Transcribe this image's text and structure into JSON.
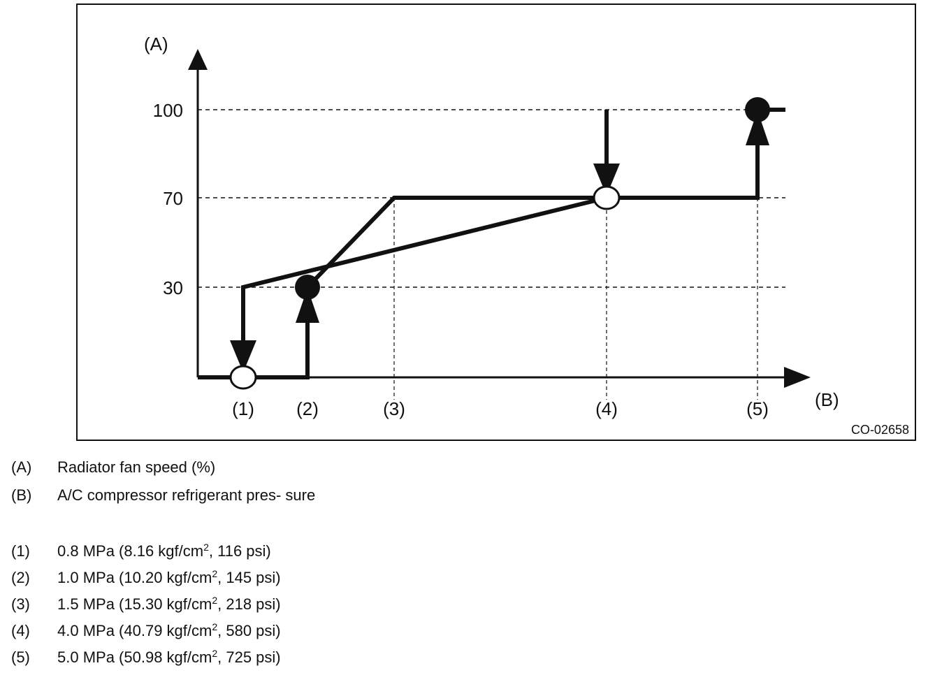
{
  "chart_data": {
    "type": "line",
    "figure_code": "CO-02658",
    "y_axis": {
      "label": "(A)",
      "ticks": [
        30,
        70,
        100
      ]
    },
    "x_axis": {
      "label": "(B)",
      "ticks": [
        "(1)",
        "(2)",
        "(3)",
        "(4)",
        "(5)"
      ]
    },
    "grid": "dashed reference lines at 30, 70, 100 and at points (3), (4), (5)",
    "series": [
      {
        "direction": "pressure rising (solid dot = fan step up)",
        "points": [
          {
            "x": "start",
            "y": 0
          },
          {
            "x": "(2)",
            "y": 0
          },
          {
            "x": "(2)",
            "y": 30
          },
          {
            "x": "(3)",
            "y": 70
          },
          {
            "x": "(5)",
            "y": 70
          },
          {
            "x": "(5)",
            "y": 100
          },
          {
            "x": "end",
            "y": 100
          }
        ]
      },
      {
        "direction": "pressure falling (open dot = fan step down)",
        "points": [
          {
            "x": "(4)",
            "y": 100
          },
          {
            "x": "(4)",
            "y": 70
          },
          {
            "x": "(1)",
            "y": 30
          },
          {
            "x": "(1)",
            "y": 0
          }
        ]
      }
    ],
    "markers": {
      "filled": [
        {
          "x": "(2)",
          "y": 30
        },
        {
          "x": "(5)",
          "y": 100
        }
      ],
      "open": [
        {
          "x": "(1)",
          "y": 0
        },
        {
          "x": "(4)",
          "y": 70
        }
      ]
    }
  },
  "legend": {
    "axes": [
      {
        "key": "(A)",
        "text": "Radiator fan speed (%)"
      },
      {
        "key": "(B)",
        "text": "A/C compressor refrigerant pres- sure"
      }
    ],
    "points": [
      {
        "key": "(1)",
        "before": "0.8 MPa (8.16 kgf/cm",
        "sup": "2",
        "after": ", 116 psi)"
      },
      {
        "key": "(2)",
        "before": "1.0 MPa (10.20 kgf/cm",
        "sup": "2",
        "after": ", 145 psi)"
      },
      {
        "key": "(3)",
        "before": "1.5 MPa (15.30 kgf/cm",
        "sup": "2",
        "after": ", 218 psi)"
      },
      {
        "key": "(4)",
        "before": "4.0 MPa (40.79 kgf/cm",
        "sup": "2",
        "after": ", 580 psi)"
      },
      {
        "key": "(5)",
        "before": "5.0 MPa (50.98 kgf/cm",
        "sup": "2",
        "after": ", 725 psi)"
      }
    ]
  }
}
